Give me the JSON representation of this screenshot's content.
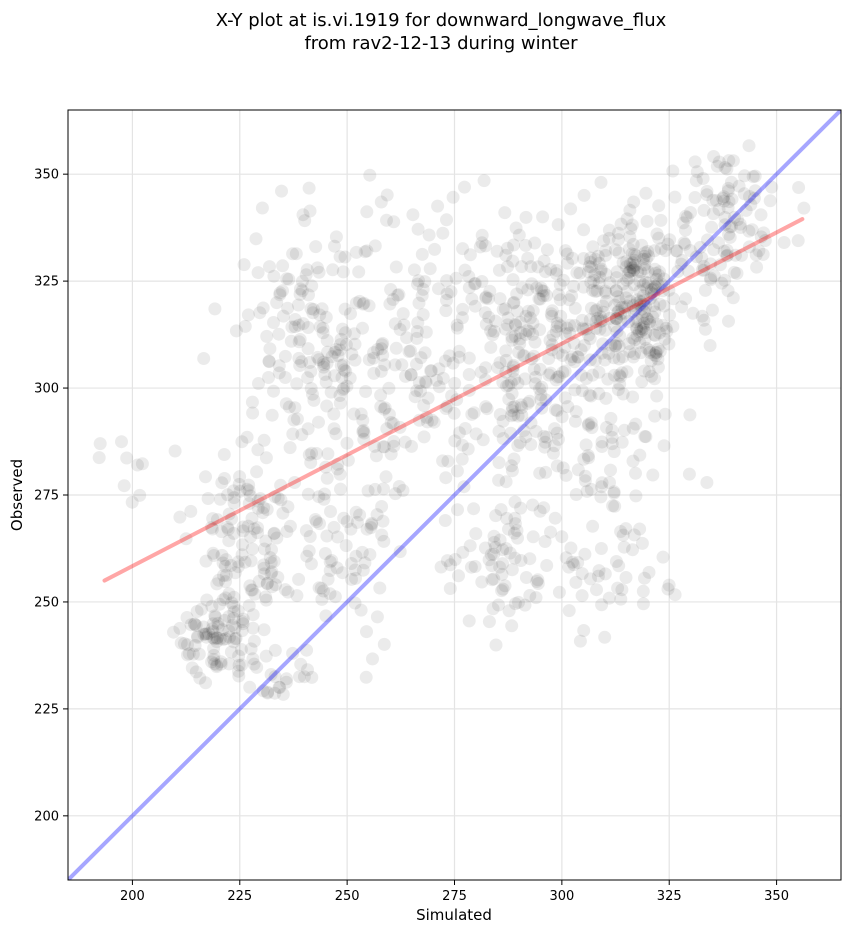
{
  "chart_data": {
    "type": "scatter",
    "title_line1": "X-Y plot at is.vi.1919 for downward_longwave_flux",
    "title_line2": "from rav2-12-13 during winter",
    "xlabel": "Simulated",
    "ylabel": "Observed",
    "xlim": [
      185,
      365
    ],
    "ylim": [
      185,
      365
    ],
    "xticks": [
      200,
      225,
      250,
      275,
      300,
      325,
      350
    ],
    "yticks": [
      200,
      225,
      250,
      275,
      300,
      325,
      350
    ],
    "grid": true,
    "lines": [
      {
        "name": "one-to-one",
        "color": "#0000ff",
        "x": [
          185,
          365
        ],
        "y": [
          185,
          365
        ]
      },
      {
        "name": "regression",
        "color": "#ff0000",
        "x": [
          193.5,
          356
        ],
        "y": [
          255,
          339.5
        ]
      }
    ],
    "point_color": "#000000",
    "clusters": [
      {
        "cx": 220,
        "cy": 242,
        "sx": 5,
        "sy": 5,
        "n": 90
      },
      {
        "cx": 226,
        "cy": 265,
        "sx": 6,
        "sy": 12,
        "n": 110
      },
      {
        "cx": 240,
        "cy": 312,
        "sx": 9,
        "sy": 14,
        "n": 120
      },
      {
        "cx": 255,
        "cy": 300,
        "sx": 10,
        "sy": 20,
        "n": 130
      },
      {
        "cx": 275,
        "cy": 310,
        "sx": 12,
        "sy": 18,
        "n": 120
      },
      {
        "cx": 290,
        "cy": 300,
        "sx": 10,
        "sy": 20,
        "n": 140
      },
      {
        "cx": 300,
        "cy": 318,
        "sx": 9,
        "sy": 12,
        "n": 120
      },
      {
        "cx": 318,
        "cy": 322,
        "sx": 6,
        "sy": 9,
        "n": 200
      },
      {
        "cx": 310,
        "cy": 290,
        "sx": 8,
        "sy": 18,
        "n": 100
      },
      {
        "cx": 338,
        "cy": 338,
        "sx": 7,
        "sy": 8,
        "n": 110
      },
      {
        "cx": 248,
        "cy": 262,
        "sx": 6,
        "sy": 14,
        "n": 60
      },
      {
        "cx": 236,
        "cy": 232,
        "sx": 4,
        "sy": 4,
        "n": 25
      },
      {
        "cx": 285,
        "cy": 260,
        "sx": 6,
        "sy": 9,
        "n": 50
      },
      {
        "cx": 310,
        "cy": 255,
        "sx": 8,
        "sy": 7,
        "n": 40
      },
      {
        "cx": 200,
        "cy": 280,
        "sx": 4,
        "sy": 6,
        "n": 10
      }
    ]
  }
}
